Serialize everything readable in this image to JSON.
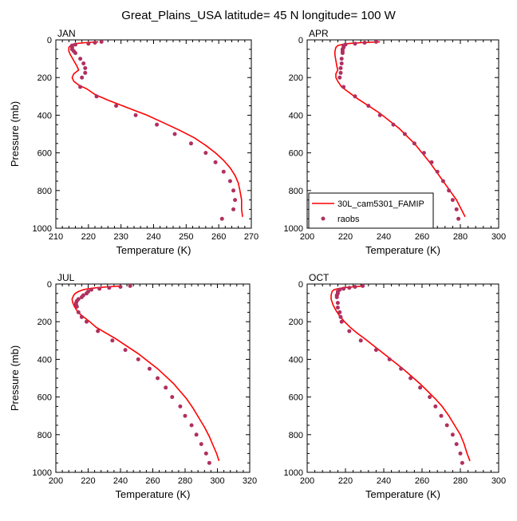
{
  "title": "Great_Plains_USA  latitude= 45 N longitude= 100 W",
  "chart_data": [
    {
      "type": "line",
      "panel": "JAN",
      "xlabel": "Temperature (K)",
      "ylabel": "Pressure (mb)",
      "xlim": [
        210,
        270
      ],
      "ylim": [
        1000,
        0
      ],
      "xticks": [
        210,
        220,
        230,
        240,
        250,
        260,
        270
      ],
      "yticks": [
        0,
        200,
        400,
        600,
        800,
        1000
      ],
      "series": [
        {
          "name": "30L_cam5301_FAMIP",
          "style": "line",
          "color": "#ff0000",
          "points": [
            [
              223,
              10
            ],
            [
              219,
              15
            ],
            [
              216,
              20
            ],
            [
              215,
              25
            ],
            [
              214.5,
              30
            ],
            [
              214,
              40
            ],
            [
              214,
              60
            ],
            [
              214.5,
              80
            ],
            [
              215.5,
              110
            ],
            [
              216.5,
              140
            ],
            [
              217,
              160
            ],
            [
              215.5,
              180
            ],
            [
              215,
              200
            ],
            [
              215.5,
              220
            ],
            [
              217,
              240
            ],
            [
              219.5,
              260
            ],
            [
              222,
              290
            ],
            [
              226,
              320
            ],
            [
              232,
              360
            ],
            [
              238,
              400
            ],
            [
              243,
              440
            ],
            [
              248,
              480
            ],
            [
              252.5,
              520
            ],
            [
              256,
              560
            ],
            [
              259,
              600
            ],
            [
              261.5,
              640
            ],
            [
              263.5,
              680
            ],
            [
              265,
              720
            ],
            [
              266,
              760
            ],
            [
              266.5,
              800
            ],
            [
              267,
              850
            ],
            [
              267,
              900
            ],
            [
              267.3,
              940
            ]
          ]
        },
        {
          "name": "raobs",
          "style": "markers",
          "color": "#b03060",
          "points": [
            [
              224,
              10
            ],
            [
              222,
              15
            ],
            [
              220,
              20
            ],
            [
              216,
              25
            ],
            [
              215,
              30
            ],
            [
              215,
              40
            ],
            [
              215,
              50
            ],
            [
              215.5,
              60
            ],
            [
              216,
              70
            ],
            [
              217.5,
              100
            ],
            [
              218.5,
              125
            ],
            [
              219,
              150
            ],
            [
              219,
              175
            ],
            [
              218,
              200
            ],
            [
              217.5,
              250
            ],
            [
              222.5,
              300
            ],
            [
              228.5,
              350
            ],
            [
              234.5,
              400
            ],
            [
              241,
              450
            ],
            [
              246.5,
              500
            ],
            [
              251.5,
              550
            ],
            [
              256,
              600
            ],
            [
              259,
              650
            ],
            [
              261.5,
              700
            ],
            [
              263.5,
              750
            ],
            [
              264.5,
              800
            ],
            [
              265,
              850
            ],
            [
              264.5,
              900
            ],
            [
              261,
              950
            ]
          ]
        }
      ]
    },
    {
      "type": "line",
      "panel": "APR",
      "xlabel": "Temperature (K)",
      "ylabel": "",
      "xlim": [
        200,
        300
      ],
      "ylim": [
        1000,
        0
      ],
      "xticks": [
        200,
        220,
        240,
        260,
        280,
        300
      ],
      "yticks": [
        0,
        200,
        400,
        600,
        800,
        1000
      ],
      "legend": "lower-left",
      "series": [
        {
          "name": "30L_cam5301_FAMIP",
          "style": "line",
          "color": "#ff0000",
          "points": [
            [
              238,
              10
            ],
            [
              228,
              15
            ],
            [
              221,
              20
            ],
            [
              218,
              25
            ],
            [
              216,
              30
            ],
            [
              215,
              40
            ],
            [
              214.5,
              60
            ],
            [
              214.5,
              80
            ],
            [
              215,
              110
            ],
            [
              215.5,
              140
            ],
            [
              216,
              160
            ],
            [
              215,
              180
            ],
            [
              215,
              200
            ],
            [
              216,
              220
            ],
            [
              218,
              250
            ],
            [
              222,
              280
            ],
            [
              226,
              310
            ],
            [
              232,
              350
            ],
            [
              238,
              390
            ],
            [
              243,
              430
            ],
            [
              248,
              470
            ],
            [
              252,
              510
            ],
            [
              256,
              550
            ],
            [
              260,
              600
            ],
            [
              264,
              650
            ],
            [
              267.5,
              700
            ],
            [
              271,
              750
            ],
            [
              274.5,
              800
            ],
            [
              278,
              850
            ],
            [
              280.5,
              900
            ],
            [
              282.5,
              940
            ]
          ]
        },
        {
          "name": "raobs",
          "style": "markers",
          "color": "#b03060",
          "points": [
            [
              236,
              10
            ],
            [
              230,
              15
            ],
            [
              225,
              20
            ],
            [
              220,
              25
            ],
            [
              219,
              30
            ],
            [
              219,
              40
            ],
            [
              218.5,
              50
            ],
            [
              218.5,
              60
            ],
            [
              218.5,
              70
            ],
            [
              218,
              100
            ],
            [
              218,
              125
            ],
            [
              217.5,
              150
            ],
            [
              217.5,
              175
            ],
            [
              217,
              200
            ],
            [
              219,
              250
            ],
            [
              225,
              300
            ],
            [
              232,
              350
            ],
            [
              238,
              400
            ],
            [
              245,
              450
            ],
            [
              251,
              500
            ],
            [
              256,
              550
            ],
            [
              261,
              600
            ],
            [
              265,
              650
            ],
            [
              268,
              700
            ],
            [
              271,
              750
            ],
            [
              274,
              800
            ],
            [
              276,
              850
            ],
            [
              278,
              900
            ],
            [
              279,
              950
            ]
          ]
        }
      ]
    },
    {
      "type": "line",
      "panel": "JUL",
      "xlabel": "Temperature (K)",
      "ylabel": "Pressure (mb)",
      "xlim": [
        200,
        320
      ],
      "ylim": [
        1000,
        0
      ],
      "xticks": [
        200,
        220,
        240,
        260,
        280,
        300,
        320
      ],
      "yticks": [
        0,
        200,
        400,
        600,
        800,
        1000
      ],
      "series": [
        {
          "name": "30L_cam5301_FAMIP",
          "style": "line",
          "color": "#ff0000",
          "points": [
            [
              240,
              10
            ],
            [
              232,
              15
            ],
            [
              225,
              20
            ],
            [
              220,
              25
            ],
            [
              217,
              30
            ],
            [
              214,
              40
            ],
            [
              212,
              50
            ],
            [
              211,
              60
            ],
            [
              210,
              80
            ],
            [
              210.5,
              100
            ],
            [
              211.5,
              120
            ],
            [
              213,
              140
            ],
            [
              215,
              160
            ],
            [
              218,
              180
            ],
            [
              221,
              200
            ],
            [
              225,
              230
            ],
            [
              231,
              260
            ],
            [
              237,
              290
            ],
            [
              244,
              330
            ],
            [
              251,
              370
            ],
            [
              257,
              410
            ],
            [
              263,
              450
            ],
            [
              268,
              490
            ],
            [
              273,
              530
            ],
            [
              277,
              570
            ],
            [
              281,
              610
            ],
            [
              285,
              660
            ],
            [
              288.5,
              710
            ],
            [
              292,
              760
            ],
            [
              295,
              810
            ],
            [
              297.5,
              860
            ],
            [
              299.5,
              900
            ],
            [
              301,
              940
            ]
          ]
        },
        {
          "name": "raobs",
          "style": "markers",
          "color": "#b03060",
          "points": [
            [
              246,
              10
            ],
            [
              240,
              15
            ],
            [
              233,
              20
            ],
            [
              227,
              25
            ],
            [
              222,
              30
            ],
            [
              220,
              40
            ],
            [
              219,
              50
            ],
            [
              217,
              60
            ],
            [
              216,
              70
            ],
            [
              214,
              80
            ],
            [
              213,
              90
            ],
            [
              212.5,
              100
            ],
            [
              212.5,
              110
            ],
            [
              213,
              120
            ],
            [
              214,
              150
            ],
            [
              216,
              175
            ],
            [
              219,
              200
            ],
            [
              226,
              250
            ],
            [
              235,
              300
            ],
            [
              243,
              350
            ],
            [
              251,
              400
            ],
            [
              258,
              450
            ],
            [
              263,
              500
            ],
            [
              268,
              550
            ],
            [
              272,
              600
            ],
            [
              277,
              650
            ],
            [
              280,
              700
            ],
            [
              284,
              750
            ],
            [
              287,
              800
            ],
            [
              290,
              850
            ],
            [
              293,
              900
            ],
            [
              295,
              950
            ]
          ]
        }
      ]
    },
    {
      "type": "line",
      "panel": "OCT",
      "xlabel": "Temperature (K)",
      "ylabel": "",
      "xlim": [
        200,
        300
      ],
      "ylim": [
        1000,
        0
      ],
      "xticks": [
        200,
        220,
        240,
        260,
        280,
        300
      ],
      "yticks": [
        0,
        200,
        400,
        600,
        800,
        1000
      ],
      "series": [
        {
          "name": "30L_cam5301_FAMIP",
          "style": "line",
          "color": "#ff0000",
          "points": [
            [
              230,
              10
            ],
            [
              224,
              15
            ],
            [
              219,
              20
            ],
            [
              216,
              25
            ],
            [
              214,
              30
            ],
            [
              213,
              40
            ],
            [
              212.5,
              60
            ],
            [
              212.5,
              80
            ],
            [
              213.5,
              110
            ],
            [
              215,
              140
            ],
            [
              217,
              170
            ],
            [
              219.5,
              200
            ],
            [
              222.5,
              230
            ],
            [
              226,
              260
            ],
            [
              230,
              290
            ],
            [
              235,
              330
            ],
            [
              240,
              370
            ],
            [
              245,
              410
            ],
            [
              250,
              450
            ],
            [
              254.5,
              490
            ],
            [
              259,
              530
            ],
            [
              263,
              570
            ],
            [
              267,
              610
            ],
            [
              270.5,
              650
            ],
            [
              274,
              700
            ],
            [
              277,
              750
            ],
            [
              280,
              800
            ],
            [
              282,
              850
            ],
            [
              283.5,
              900
            ],
            [
              285,
              940
            ]
          ]
        },
        {
          "name": "raobs",
          "style": "markers",
          "color": "#b03060",
          "points": [
            [
              229,
              10
            ],
            [
              225,
              15
            ],
            [
              222,
              20
            ],
            [
              219,
              25
            ],
            [
              217,
              30
            ],
            [
              216,
              40
            ],
            [
              216,
              50
            ],
            [
              215.5,
              60
            ],
            [
              215.5,
              70
            ],
            [
              216,
              100
            ],
            [
              216,
              125
            ],
            [
              217,
              150
            ],
            [
              217.5,
              175
            ],
            [
              218,
              200
            ],
            [
              222,
              250
            ],
            [
              228,
              300
            ],
            [
              236,
              350
            ],
            [
              243,
              400
            ],
            [
              249,
              450
            ],
            [
              254,
              500
            ],
            [
              259,
              550
            ],
            [
              264,
              600
            ],
            [
              267,
              650
            ],
            [
              270,
              700
            ],
            [
              273,
              750
            ],
            [
              276,
              800
            ],
            [
              278,
              850
            ],
            [
              280,
              900
            ],
            [
              281,
              950
            ]
          ]
        }
      ]
    }
  ]
}
